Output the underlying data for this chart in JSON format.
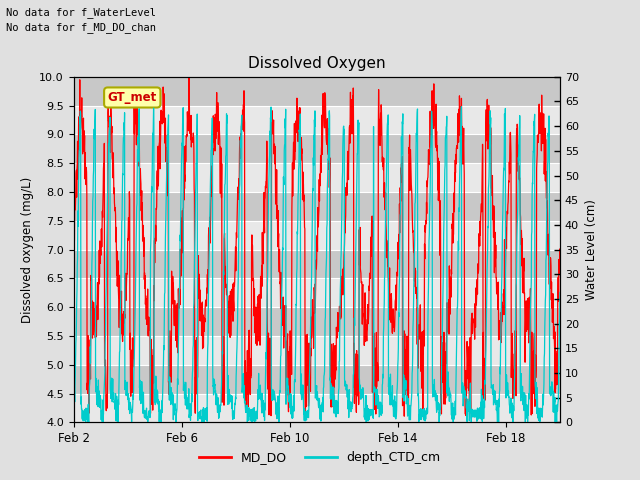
{
  "title": "Dissolved Oxygen",
  "ylabel_left": "Dissolved oxygen (mg/L)",
  "ylabel_right": "Water Level (cm)",
  "text_line1": "No data for f_WaterLevel",
  "text_line2": "No data for f_MD_DO_chan",
  "gt_met_label": "GT_met",
  "ylim_left": [
    4.0,
    10.0
  ],
  "ylim_right": [
    0,
    70
  ],
  "yticks_left": [
    4.0,
    4.5,
    5.0,
    5.5,
    6.0,
    6.5,
    7.0,
    7.5,
    8.0,
    8.5,
    9.0,
    9.5,
    10.0
  ],
  "yticks_right": [
    0,
    5,
    10,
    15,
    20,
    25,
    30,
    35,
    40,
    45,
    50,
    55,
    60,
    65,
    70
  ],
  "xtick_positions": [
    0,
    4,
    8,
    12,
    16
  ],
  "xtick_labels": [
    "Feb 2",
    "Feb 6",
    "Feb 10",
    "Feb 14",
    "Feb 18"
  ],
  "xlim": [
    0,
    18
  ],
  "color_MD_DO": "#FF0000",
  "color_depth_CTD": "#00CCCC",
  "legend_labels": [
    "MD_DO",
    "depth_CTD_cm"
  ],
  "background_color": "#E0E0E0",
  "plot_bg_light": "#E8E8E8",
  "plot_bg_dark": "#C8C8C8",
  "grid_color": "#FFFFFF",
  "gt_met_fg": "#CC0000",
  "gt_met_bg": "#FFFFAA",
  "gt_met_border": "#AAAA00"
}
